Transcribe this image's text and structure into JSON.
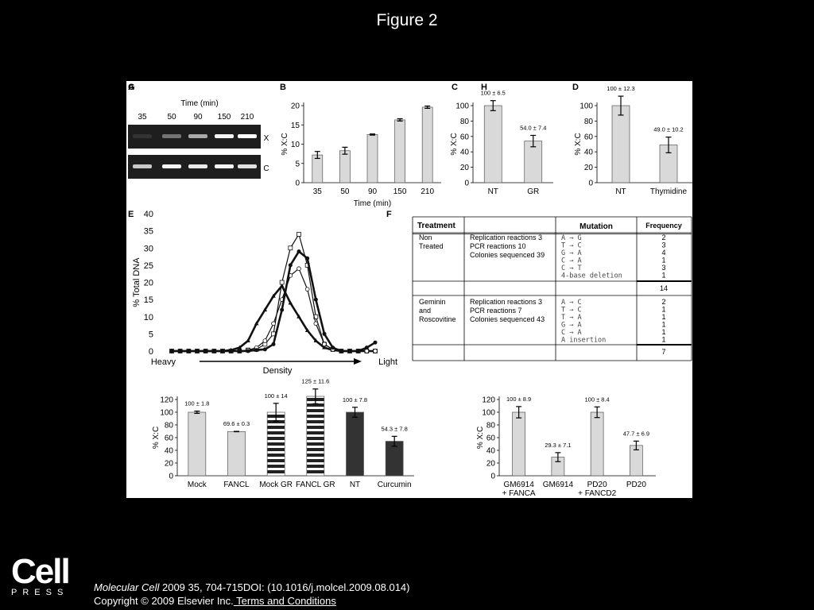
{
  "slide": {
    "title": "Figure 2",
    "logo": {
      "main": "Cell",
      "sub": "PRESS"
    },
    "citation": {
      "journal": "Molecular Cell",
      "details": " 2009 35, 704-715DOI: (10.1016/j.molcel.2009.08.014)"
    },
    "copyright": "Copyright © 2009 Elsevier Inc.",
    "terms_link": " Terms and Conditions"
  },
  "panel_a": {
    "label": "A",
    "axis_title": "Time (min)",
    "lanes": [
      "35",
      "50",
      "90",
      "150",
      "210"
    ],
    "rows": [
      {
        "name": "X",
        "intensity": [
          0.05,
          0.35,
          0.6,
          0.95,
          1.0
        ]
      },
      {
        "name": "C",
        "intensity": [
          0.75,
          0.95,
          0.9,
          0.95,
          0.85
        ]
      }
    ]
  },
  "chart_data": [
    {
      "id": "B",
      "type": "bar",
      "panel_label": "B",
      "ylabel": "% X:C",
      "xlabel": "Time (min)",
      "ylim": [
        0,
        20
      ],
      "yticks": [
        0,
        5,
        10,
        15,
        20
      ],
      "categories": [
        "35",
        "50",
        "90",
        "150",
        "210"
      ],
      "values": [
        7.2,
        8.3,
        12.5,
        16.3,
        19.6
      ],
      "errors": [
        0.9,
        0.9,
        0.15,
        0.3,
        0.3
      ],
      "fills": [
        "#d9d9d9",
        "#d9d9d9",
        "#d9d9d9",
        "#d9d9d9",
        "#d9d9d9"
      ],
      "value_labels": []
    },
    {
      "id": "C",
      "type": "bar",
      "panel_label": "C",
      "ylabel": "% X:C",
      "xlabel": "",
      "ylim": [
        0,
        100
      ],
      "yticks": [
        0,
        20,
        40,
        60,
        80,
        100
      ],
      "categories": [
        "NT",
        "GR"
      ],
      "values": [
        100,
        54
      ],
      "errors": [
        6.5,
        7.4
      ],
      "fills": [
        "#d9d9d9",
        "#d9d9d9"
      ],
      "value_labels": [
        "100 ± 6.5",
        "54.0 ± 7.4"
      ]
    },
    {
      "id": "D",
      "type": "bar",
      "panel_label": "D",
      "ylabel": "% X:C",
      "xlabel": "",
      "ylim": [
        0,
        100
      ],
      "yticks": [
        0,
        20,
        40,
        60,
        80,
        100
      ],
      "categories": [
        "NT",
        "Thymidine"
      ],
      "values": [
        100,
        49
      ],
      "errors": [
        12.3,
        10.2
      ],
      "fills": [
        "#d9d9d9",
        "#d9d9d9"
      ],
      "value_labels": [
        "100 ± 12.3",
        "49.0 ± 10.2"
      ]
    },
    {
      "id": "E",
      "type": "line",
      "panel_label": "E",
      "ylabel": "% Total DNA",
      "xlabel": "Density",
      "x_left": "Heavy",
      "x_right": "Light",
      "ylim": [
        0,
        40
      ],
      "yticks": [
        0,
        5,
        10,
        15,
        20,
        25,
        30,
        35,
        40
      ],
      "x": [
        1,
        2,
        3,
        4,
        5,
        6,
        7,
        8,
        9,
        10,
        11,
        12,
        13,
        14,
        15,
        16,
        17,
        18,
        19,
        20,
        21,
        22,
        23,
        24,
        25
      ],
      "series": [
        {
          "marker": "triangle",
          "values": [
            0,
            0,
            0,
            0,
            0,
            0,
            0,
            0.3,
            1,
            3,
            8,
            12,
            16,
            19,
            14,
            10,
            6,
            3,
            1,
            0.3,
            0,
            0,
            0,
            0,
            0
          ]
        },
        {
          "marker": "square",
          "values": [
            0,
            0,
            0,
            0,
            0,
            0,
            0,
            0,
            0,
            0.3,
            0.5,
            2,
            5,
            20,
            30,
            34,
            25,
            10,
            2,
            0.5,
            0,
            0,
            0,
            0,
            0
          ]
        },
        {
          "marker": "circle-open",
          "values": [
            0,
            0,
            0,
            0,
            0,
            0,
            0,
            0,
            0,
            0.3,
            1,
            3,
            8,
            15,
            22,
            24,
            18,
            8,
            2,
            0.5,
            0,
            0,
            0,
            0,
            0
          ]
        },
        {
          "marker": "circle-filled",
          "values": [
            0,
            0,
            0,
            0,
            0,
            0,
            0,
            0,
            0,
            0,
            0.3,
            0.5,
            2,
            12,
            25,
            29,
            27,
            15,
            5,
            1,
            0,
            0,
            0,
            1,
            2.5
          ]
        }
      ]
    },
    {
      "id": "G",
      "type": "bar",
      "panel_label": "G",
      "ylabel": "% X:C",
      "xlabel": "",
      "ylim": [
        0,
        120
      ],
      "yticks": [
        0,
        20,
        40,
        60,
        80,
        100,
        120
      ],
      "categories": [
        "Mock",
        "FANCL",
        "Mock GR",
        "FANCL GR",
        "NT",
        "Curcumin"
      ],
      "values": [
        100,
        69.6,
        100,
        125,
        100,
        54.3
      ],
      "errors": [
        1.8,
        0.3,
        14,
        11.6,
        7.8,
        7.8
      ],
      "fills": [
        "#d9d9d9",
        "#d9d9d9",
        "stripes",
        "stripes",
        "#333333",
        "#333333"
      ],
      "value_labels": [
        "100 ± 1.8",
        "69.6 ± 0.3",
        "100 ± 14",
        "125 ± 11.6",
        "100 ± 7.8",
        "54.3 ± 7.8"
      ]
    },
    {
      "id": "H",
      "type": "bar",
      "panel_label": "H",
      "ylabel": "% X:C",
      "xlabel": "",
      "ylim": [
        0,
        120
      ],
      "yticks": [
        0,
        20,
        40,
        60,
        80,
        100,
        120
      ],
      "categories": [
        "GM6914\n+ FANCA",
        "GM6914",
        "PD20\n+ FANCD2",
        "PD20"
      ],
      "values": [
        100,
        29.3,
        100,
        47.7
      ],
      "errors": [
        8.9,
        7.1,
        8.4,
        6.9
      ],
      "fills": [
        "#d9d9d9",
        "#d9d9d9",
        "#d9d9d9",
        "#d9d9d9"
      ],
      "value_labels": [
        "100 ± 8.9",
        "29.3 ± 7.1",
        "100 ± 8.4",
        "47.7 ± 6.9"
      ]
    },
    {
      "id": "F",
      "type": "table",
      "panel_label": "F",
      "headers": [
        "Treatment",
        "",
        "Mutation",
        "Frequency"
      ],
      "groups": [
        {
          "treatment": [
            "Non",
            "Treated"
          ],
          "details": [
            "Replication reactions 3",
            "PCR reactions 10",
            "Colonies sequenced 39"
          ],
          "mutations": [
            "A → G",
            "T → C",
            "G → A",
            "C → A",
            "C → T",
            "4-base deletion"
          ],
          "frequencies": [
            "2",
            "3",
            "4",
            "1",
            "3",
            "1"
          ],
          "total": "14"
        },
        {
          "treatment": [
            "Geminin",
            "and",
            "Roscovitine"
          ],
          "details": [
            "Replication reactions 3",
            "PCR reactions 7",
            "Colonies sequenced 43"
          ],
          "mutations": [
            "A → C",
            "T → C",
            "T → A",
            "G → A",
            "C → A",
            "A insertion"
          ],
          "frequencies": [
            "2",
            "1",
            "1",
            "1",
            "1",
            "1"
          ],
          "total": "7"
        }
      ]
    }
  ]
}
